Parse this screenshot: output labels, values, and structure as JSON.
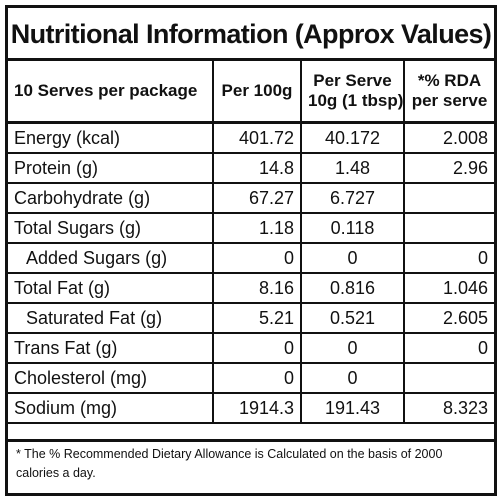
{
  "title": "Nutritional Information (Approx Values)",
  "headers": {
    "serves": "10 Serves per package",
    "per100": "Per 100g",
    "perserve_line1": "Per Serve",
    "perserve_line2": "10g (1 tbsp)",
    "rda_line1": "*% RDA",
    "rda_line2": "per serve"
  },
  "rows": [
    {
      "name": "Energy (kcal)",
      "per100": "401.72",
      "perserve": "40.172",
      "rda": "2.008"
    },
    {
      "name": "Protein (g)",
      "per100": "14.8",
      "perserve": "1.48",
      "rda": "2.96"
    },
    {
      "name": "Carbohydrate (g)",
      "per100": "67.27",
      "perserve": "6.727",
      "rda": ""
    },
    {
      "name": "Total Sugars (g)",
      "per100": "1.18",
      "perserve": "0.118",
      "rda": ""
    },
    {
      "name": "Added Sugars (g)",
      "per100": "0",
      "perserve": "0",
      "rda": "0"
    },
    {
      "name": "Total Fat (g)",
      "per100": "8.16",
      "perserve": "0.816",
      "rda": "1.046"
    },
    {
      "name": "Saturated Fat (g)",
      "per100": "5.21",
      "perserve": "0.521",
      "rda": "2.605"
    },
    {
      "name": "Trans Fat (g)",
      "per100": "0",
      "perserve": "0",
      "rda": "0"
    },
    {
      "name": "Cholesterol (mg)",
      "per100": "0",
      "perserve": "0",
      "rda": ""
    },
    {
      "name": "Sodium (mg)",
      "per100": "1914.3",
      "perserve": "191.43",
      "rda": "8.323"
    }
  ],
  "footnote": "* The % Recommended Dietary Allowance is Calculated on the basis of 2000 calories a day."
}
